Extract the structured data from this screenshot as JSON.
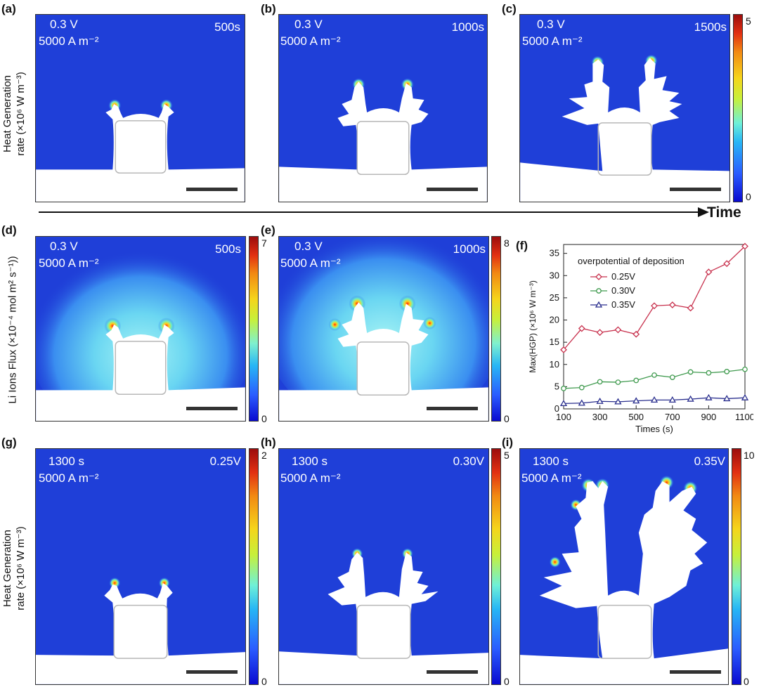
{
  "figure": {
    "time_axis_label": "Time",
    "row_labels": {
      "row1": [
        "Heat Generation",
        "rate (×10⁶ W m⁻³)"
      ],
      "row2": [
        "Li Ions Flux (×10⁻⁴ mol m² s⁻¹))"
      ],
      "row3": [
        "Heat Generation",
        "rate (×10⁶ W m⁻³)"
      ]
    },
    "panels": [
      {
        "letter": "(a)",
        "voltage": "0.3 V",
        "current": "5000 A m⁻²",
        "tag": "500s"
      },
      {
        "letter": "(b)",
        "voltage": "0.3 V",
        "current": "5000 A m⁻²",
        "tag": "1000s"
      },
      {
        "letter": "(c)",
        "voltage": "0.3 V",
        "current": "5000 A m⁻²",
        "tag": "1500s"
      },
      {
        "letter": "(d)",
        "voltage": "0.3 V",
        "current": "5000 A m⁻²",
        "tag": "500s"
      },
      {
        "letter": "(e)",
        "voltage": "0.3 V",
        "current": "5000 A m⁻²",
        "tag": "1000s"
      },
      {
        "letter": "(f)"
      },
      {
        "letter": "(g)",
        "time": "1300 s",
        "current": "5000 A m⁻²",
        "tag": "0.25V"
      },
      {
        "letter": "(h)",
        "time": "1300 s",
        "current": "5000 A m⁻²",
        "tag": "0.30V"
      },
      {
        "letter": "(i)",
        "time": "1300 s",
        "current": "5000 A m⁻²",
        "tag": "0.35V"
      }
    ],
    "colorbars": {
      "c": {
        "max": "5",
        "min": "0"
      },
      "d": {
        "max": "7",
        "min": "0"
      },
      "e": {
        "max": "8",
        "min": "0"
      },
      "g": {
        "max": "2",
        "min": "0"
      },
      "h": {
        "max": "5",
        "min": "0"
      },
      "i": {
        "max": "10",
        "min": "0"
      }
    },
    "colors": {
      "field_blue": "#1f3fd8",
      "flux_cyan": "#63d8f2",
      "s025": "#c8324e",
      "s030": "#3f9a4e",
      "s035": "#2a2f8e"
    }
  },
  "chart_data": {
    "type": "line",
    "xlabel": "Times (s)",
    "ylabel": "Max(HGP) (×10⁶ W m⁻³)",
    "legend_title": "overpotential of deposition",
    "legend_position": "top-left",
    "xlim": [
      100,
      1100
    ],
    "ylim": [
      0,
      37
    ],
    "xticks": [
      100,
      300,
      500,
      700,
      900,
      1100
    ],
    "yticks": [
      0,
      5,
      10,
      15,
      20,
      25,
      30,
      35
    ],
    "x": [
      100,
      200,
      300,
      400,
      500,
      600,
      700,
      800,
      900,
      1000,
      1100
    ],
    "series": [
      {
        "name": "0.25V",
        "color": "#c8324e",
        "marker": "diamond",
        "values": [
          13.3,
          18.1,
          17.2,
          17.8,
          16.8,
          23.2,
          23.4,
          22.7,
          30.8,
          32.7,
          36.6
        ]
      },
      {
        "name": "0.30V",
        "color": "#3f9a4e",
        "marker": "circle",
        "values": [
          4.6,
          4.8,
          6.1,
          6.0,
          6.4,
          7.6,
          7.1,
          8.3,
          8.1,
          8.4,
          8.9
        ]
      },
      {
        "name": "0.35V",
        "color": "#2a2f8e",
        "marker": "triangle",
        "values": [
          1.2,
          1.3,
          1.7,
          1.6,
          1.8,
          2.0,
          2.0,
          2.2,
          2.5,
          2.3,
          2.5
        ]
      }
    ]
  }
}
